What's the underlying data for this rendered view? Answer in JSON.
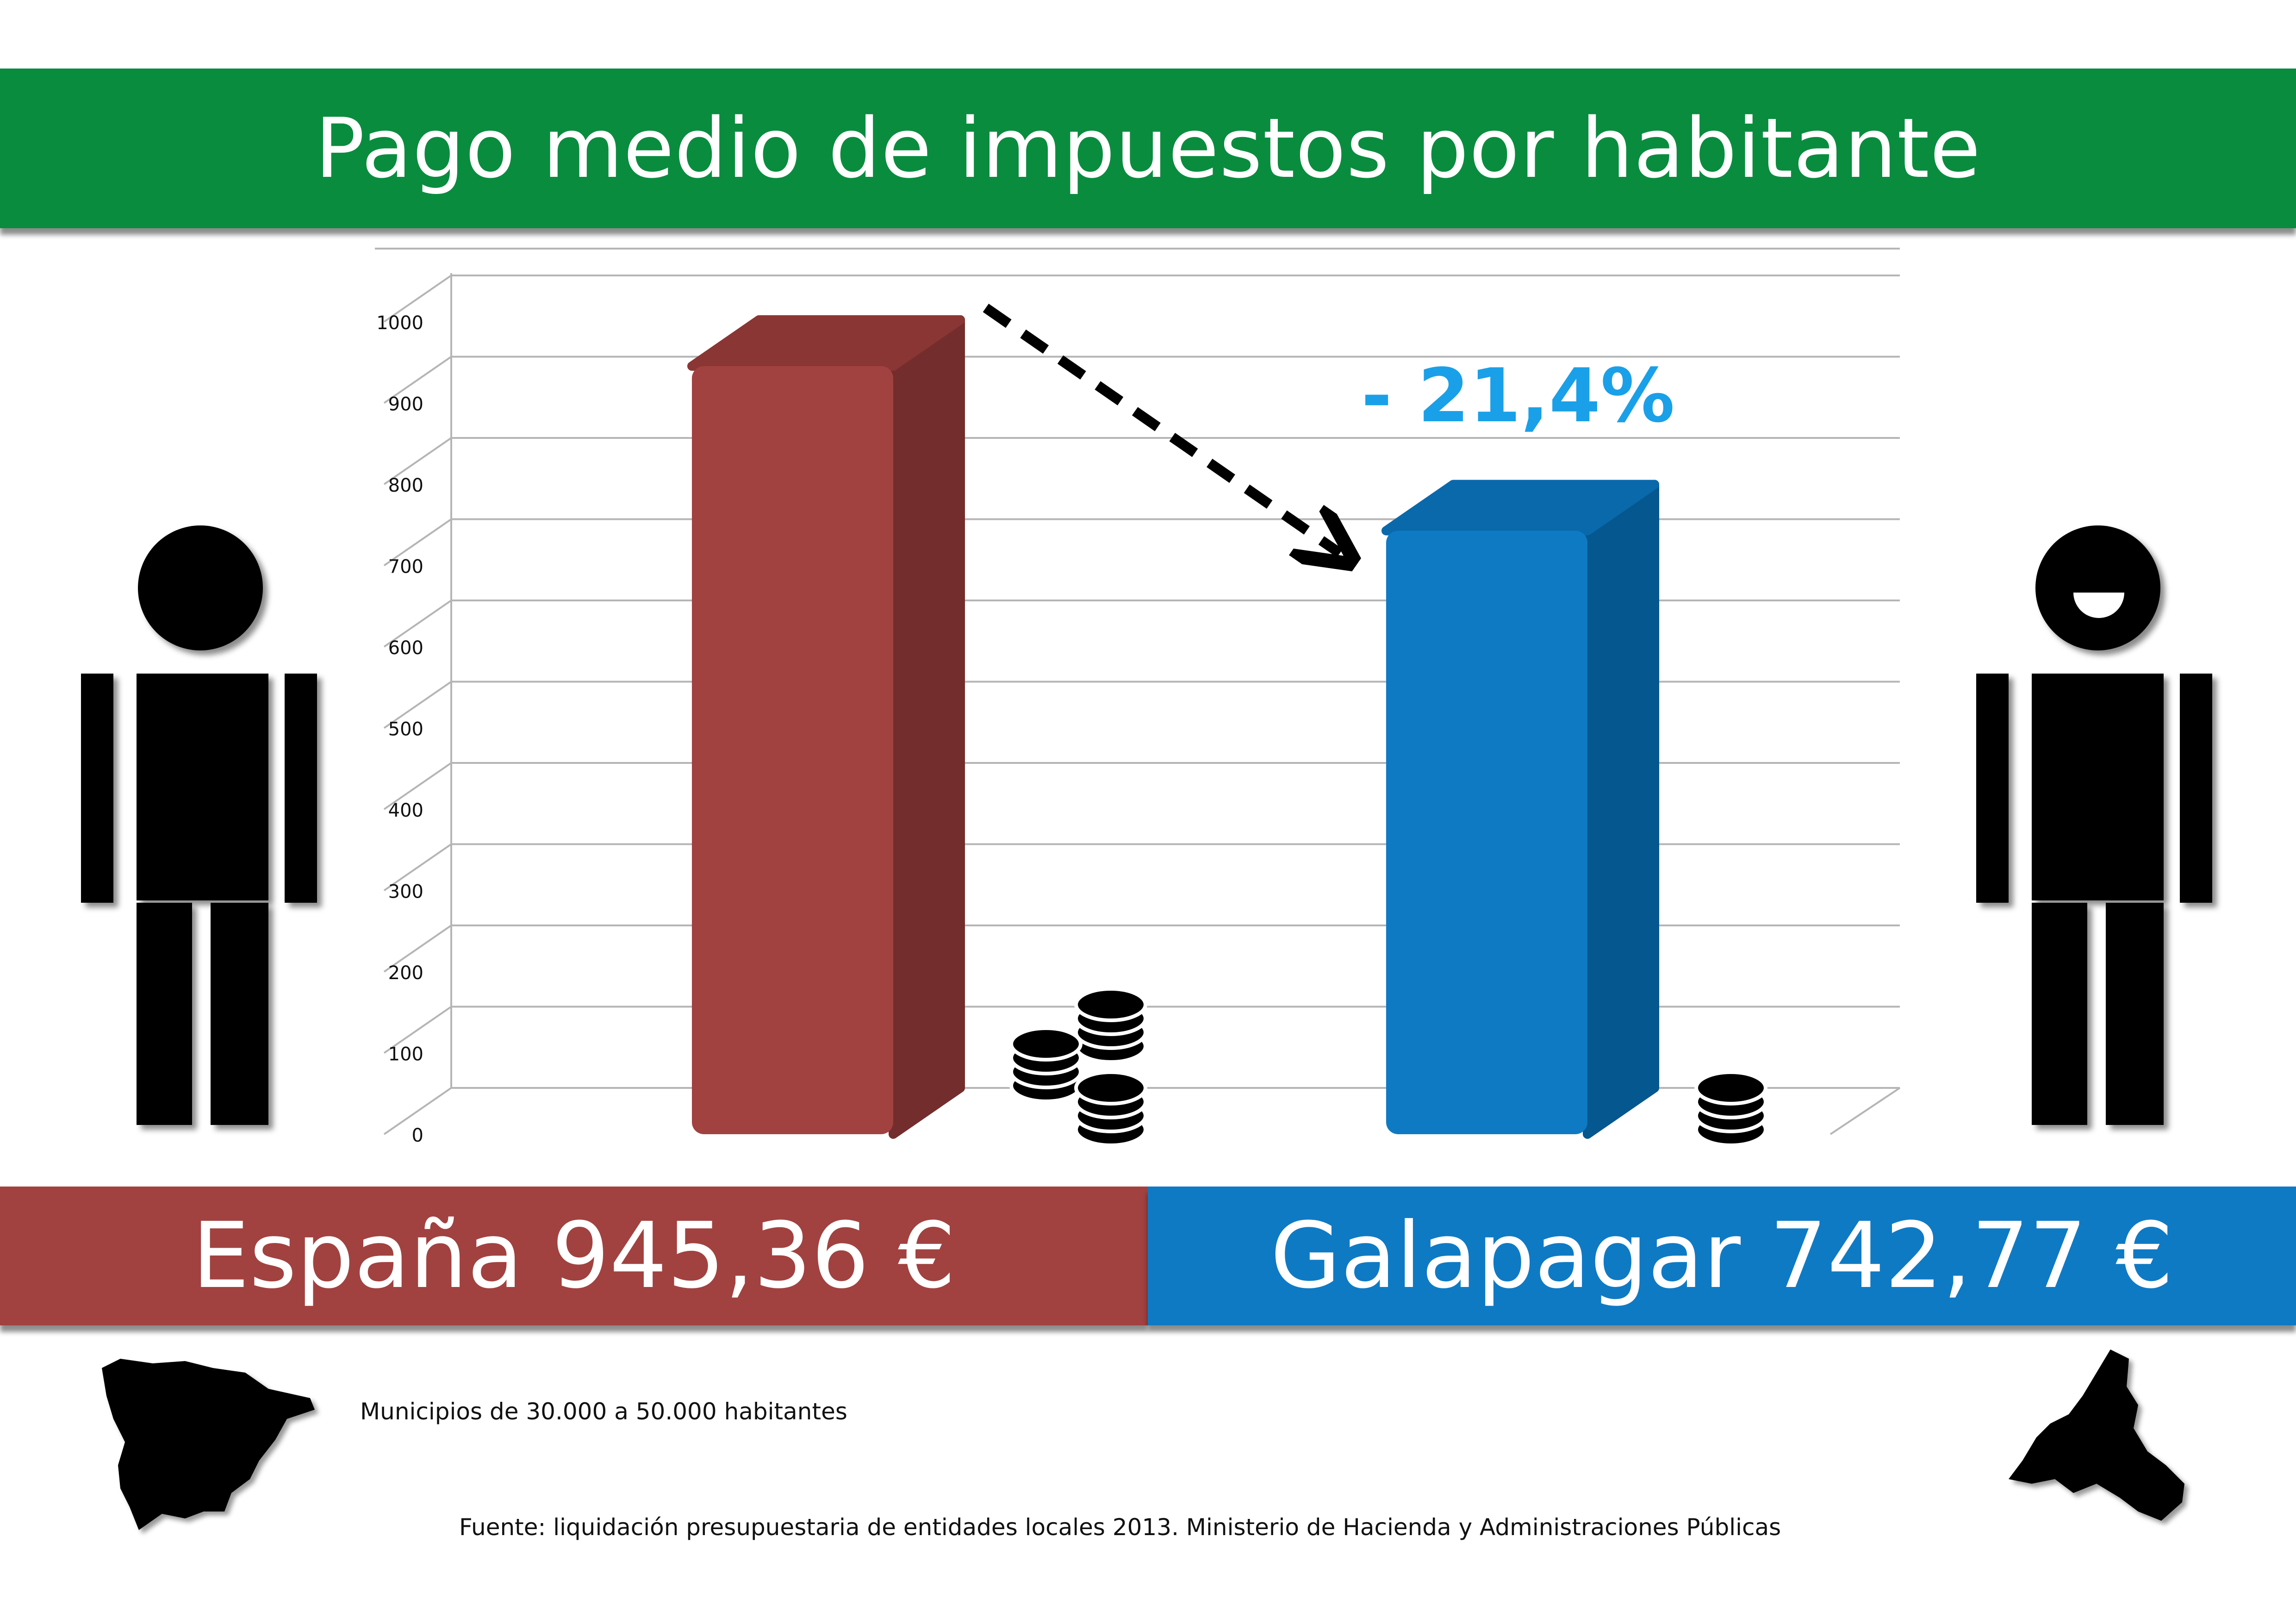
{
  "header": {
    "title": "Pago medio de impuestos por habitante"
  },
  "colors": {
    "header_green": "#0a8c3f",
    "espana_red": "#a14240",
    "galapagar_blue": "#0f7ac4",
    "percent_blue": "#1aa0e8"
  },
  "chart_data": {
    "type": "bar",
    "categories": [
      "España",
      "Galapagar"
    ],
    "values": [
      945.36,
      742.77
    ],
    "ylim": [
      0,
      1000
    ],
    "yticks": [
      "0",
      "100",
      "200",
      "300",
      "400",
      "500",
      "600",
      "700",
      "800",
      "900",
      "1000"
    ],
    "grid": true,
    "annotation": "- 21,4%"
  },
  "panels": {
    "espana": "España 945,36 €",
    "galapagar": "Galapagar 742,77 €"
  },
  "footer": {
    "note": "Municipios de 30.000 a 50.000 habitantes",
    "source": "Fuente: liquidación presupuestaria de entidades locales 2013. Ministerio de Hacienda y Administraciones Públicas"
  },
  "icons": [
    "coins-icon",
    "sad-person-icon",
    "happy-person-icon",
    "spain-map-icon",
    "madrid-map-icon"
  ]
}
